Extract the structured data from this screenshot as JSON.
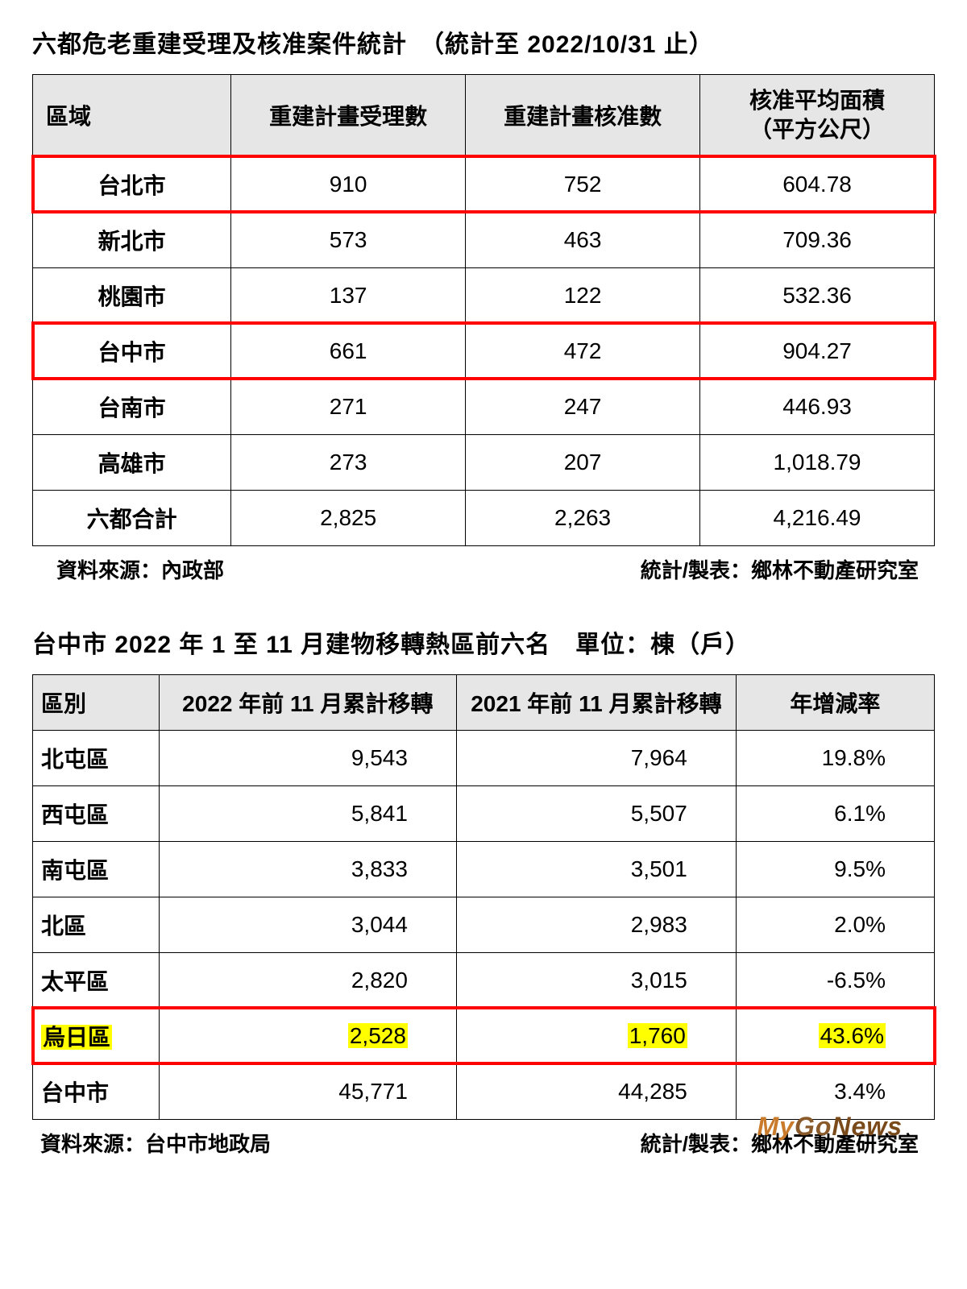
{
  "table1": {
    "title_pre": "六都危老重建受理及核准案件統計　",
    "title_post": "（統計至 2022/10/31 止）",
    "columns": [
      "區域",
      "重建計畫受理數",
      "重建計畫核准數",
      "核准平均面積\n（平方公尺）"
    ],
    "rows": [
      {
        "cells": [
          "台北市",
          "910",
          "752",
          "604.78"
        ],
        "highlight": true
      },
      {
        "cells": [
          "新北市",
          "573",
          "463",
          "709.36"
        ],
        "highlight": false
      },
      {
        "cells": [
          "桃園市",
          "137",
          "122",
          "532.36"
        ],
        "highlight": false
      },
      {
        "cells": [
          "台中市",
          "661",
          "472",
          "904.27"
        ],
        "highlight": true
      },
      {
        "cells": [
          "台南市",
          "271",
          "247",
          "446.93"
        ],
        "highlight": false
      },
      {
        "cells": [
          "高雄市",
          "273",
          "207",
          "1,018.79"
        ],
        "highlight": false
      },
      {
        "cells": [
          "六都合計",
          "2,825",
          "2,263",
          "4,216.49"
        ],
        "highlight": false
      }
    ],
    "source_left": "資料來源：內政部",
    "source_right": "統計/製表：鄉林不動產研究室",
    "highlight_color": "#ff0000",
    "header_bg": "#e6e6e6",
    "border_color": "#000000",
    "font_size": 28
  },
  "table2": {
    "title_main": "台中市 2022 年 1 至 11 月建物移轉熱區前六名",
    "title_unit": "　單位：棟（戶）",
    "columns": [
      "區別",
      "2022 年前 11 月累計移轉",
      "2021 年前 11 月累計移轉",
      "年增減率"
    ],
    "rows": [
      {
        "cells": [
          "北屯區",
          "9,543",
          "7,964",
          "19.8%"
        ],
        "highlight": false
      },
      {
        "cells": [
          "西屯區",
          "5,841",
          "5,507",
          "6.1%"
        ],
        "highlight": false
      },
      {
        "cells": [
          "南屯區",
          "3,833",
          "3,501",
          "9.5%"
        ],
        "highlight": false
      },
      {
        "cells": [
          "北區",
          "3,044",
          "2,983",
          "2.0%"
        ],
        "highlight": false
      },
      {
        "cells": [
          "太平區",
          "2,820",
          "3,015",
          "-6.5%"
        ],
        "highlight": false
      },
      {
        "cells": [
          "烏日區",
          "2,528",
          "1,760",
          "43.6%"
        ],
        "highlight": true
      },
      {
        "cells": [
          "台中市",
          "45,771",
          "44,285",
          "3.4%"
        ],
        "highlight": false
      }
    ],
    "source_left": "資料來源：台中市地政局",
    "source_right": "統計/製表：鄉林不動產研究室",
    "highlight_bg": "#ffff00",
    "highlight_border": "#ff0000",
    "header_bg": "#e6e6e6",
    "border_color": "#000000",
    "font_size": 28
  },
  "watermark": {
    "text1": "My",
    "text2": "Go",
    "text3": "News",
    "color1": "#d88b3a",
    "color2": "#a6702d",
    "color3": "#7a4f1e"
  }
}
